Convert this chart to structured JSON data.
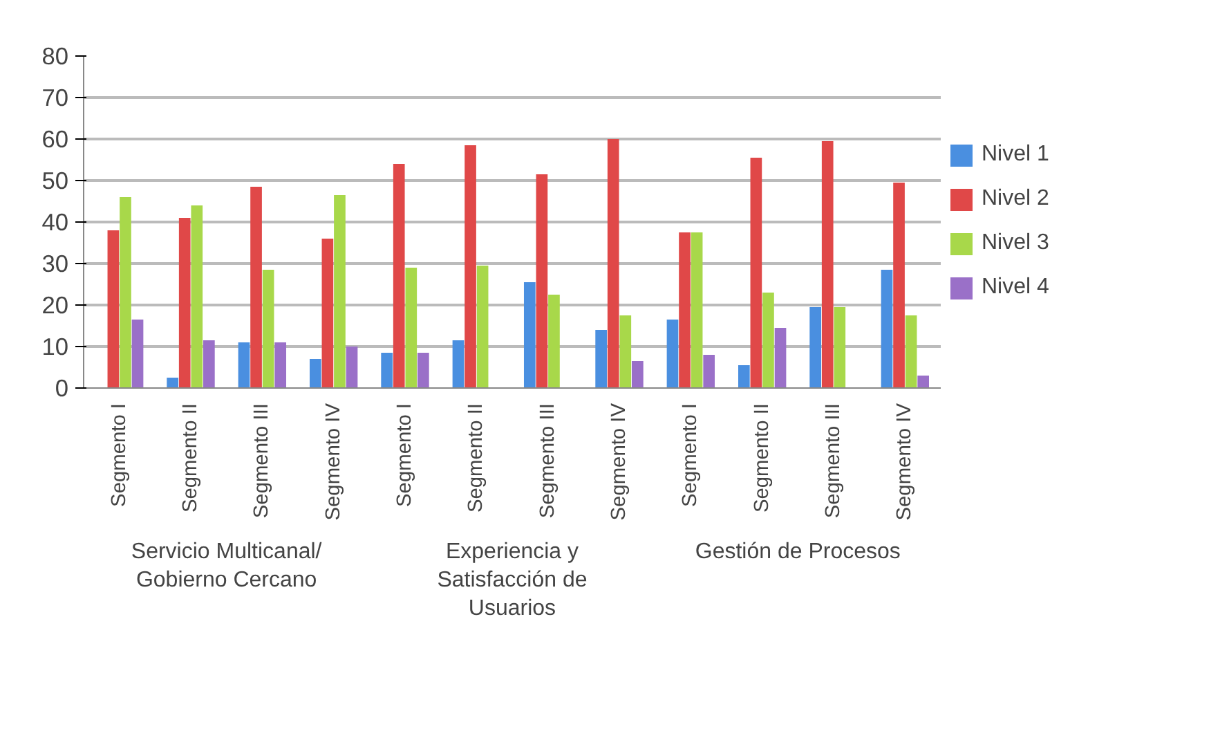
{
  "chart_data": {
    "type": "bar",
    "categories": [
      "Segmento I",
      "Segmento II",
      "Segmento III",
      "Segmento IV",
      "Segmento I",
      "Segmento II",
      "Segmento III",
      "Segmento IV",
      "Segmento I",
      "Segmento II",
      "Segmento III",
      "Segmento IV"
    ],
    "annotations": [
      "Servicio Multicanal/ Gobierno Cercano",
      "Experiencia y Satisfacción de Usuarios",
      "Gestión de Procesos"
    ],
    "series": [
      {
        "name": "Nivel 1",
        "color": "#4a8fe0",
        "values": [
          0,
          2.5,
          11,
          7,
          8.5,
          11.5,
          25.5,
          14,
          16.5,
          5.5,
          19.5,
          28.5
        ]
      },
      {
        "name": "Nivel 2",
        "color": "#e04848",
        "values": [
          38,
          41,
          48.5,
          36,
          54,
          58.5,
          51.5,
          60,
          37.5,
          55.5,
          59.5,
          49.5
        ]
      },
      {
        "name": "Nivel 3",
        "color": "#a8d84a",
        "values": [
          46,
          44,
          28.5,
          46.5,
          29,
          29.5,
          22.5,
          17.5,
          37.5,
          23,
          19.5,
          17.5
        ]
      },
      {
        "name": "Nivel 4",
        "color": "#9a70c8",
        "values": [
          16.5,
          11.5,
          11,
          10,
          8.5,
          0,
          0,
          6.5,
          8,
          14.5,
          0,
          3
        ]
      }
    ],
    "ylim": [
      0,
      80
    ],
    "yticks": [
      0,
      10,
      20,
      30,
      40,
      50,
      60,
      70,
      80
    ],
    "grid": "y",
    "legend": "right"
  }
}
